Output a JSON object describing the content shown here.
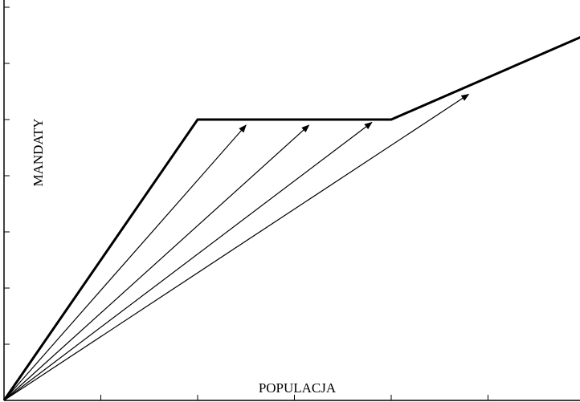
{
  "chart_data": {
    "type": "line",
    "xlabel": "POPULACJA",
    "ylabel": "MANDATY",
    "xlim": [
      0,
      6
    ],
    "ylim": [
      0,
      7
    ],
    "x_ticks": [
      0,
      1,
      2,
      3,
      4,
      5,
      6
    ],
    "y_ticks": [
      0,
      1,
      2,
      3,
      4,
      5,
      6,
      7
    ],
    "grid": false,
    "series": [
      {
        "style": "thick",
        "points": [
          [
            0,
            0
          ],
          [
            2,
            5
          ],
          [
            4,
            5
          ],
          [
            6,
            6.5
          ]
        ]
      }
    ],
    "arrows": [
      {
        "from": [
          0,
          0
        ],
        "to": [
          2.5,
          4.9
        ]
      },
      {
        "from": [
          0,
          0
        ],
        "to": [
          3.15,
          4.9
        ]
      },
      {
        "from": [
          0,
          0
        ],
        "to": [
          3.8,
          4.95
        ]
      },
      {
        "from": [
          0,
          0
        ],
        "to": [
          4.8,
          5.45
        ]
      }
    ]
  }
}
